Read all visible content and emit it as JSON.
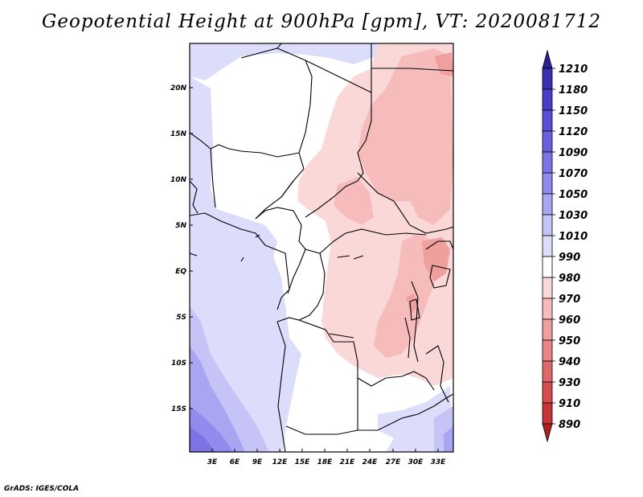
{
  "title": "Geopotential Height at 900hPa [gpm], VT: 2020081712",
  "footer": "GrADS: IGES/COLA",
  "map": {
    "lat_labels": [
      "20N",
      "15N",
      "10N",
      "5N",
      "EQ",
      "5S",
      "10S",
      "15S"
    ],
    "lon_labels": [
      "3E",
      "6E",
      "9E",
      "12E",
      "15E",
      "18E",
      "21E",
      "24E",
      "27E",
      "30E",
      "33E"
    ]
  },
  "colorbar": {
    "levels": [
      "1210",
      "1180",
      "1150",
      "1120",
      "1090",
      "1070",
      "1050",
      "1030",
      "1010",
      "990",
      "980",
      "970",
      "960",
      "950",
      "940",
      "930",
      "910",
      "890"
    ],
    "colors": [
      "#2b1f96",
      "#3b2fb0",
      "#4a3fc4",
      "#5a4fd4",
      "#6b5fde",
      "#7d72e6",
      "#938aee",
      "#aaa5f3",
      "#c6c3f7",
      "#dcdcfb",
      "#ffffff",
      "#fbd8d8",
      "#f6bcbc",
      "#f09f9f",
      "#e98585",
      "#e06a6a",
      "#d44e4e",
      "#c53535",
      "#b01f1f"
    ]
  }
}
